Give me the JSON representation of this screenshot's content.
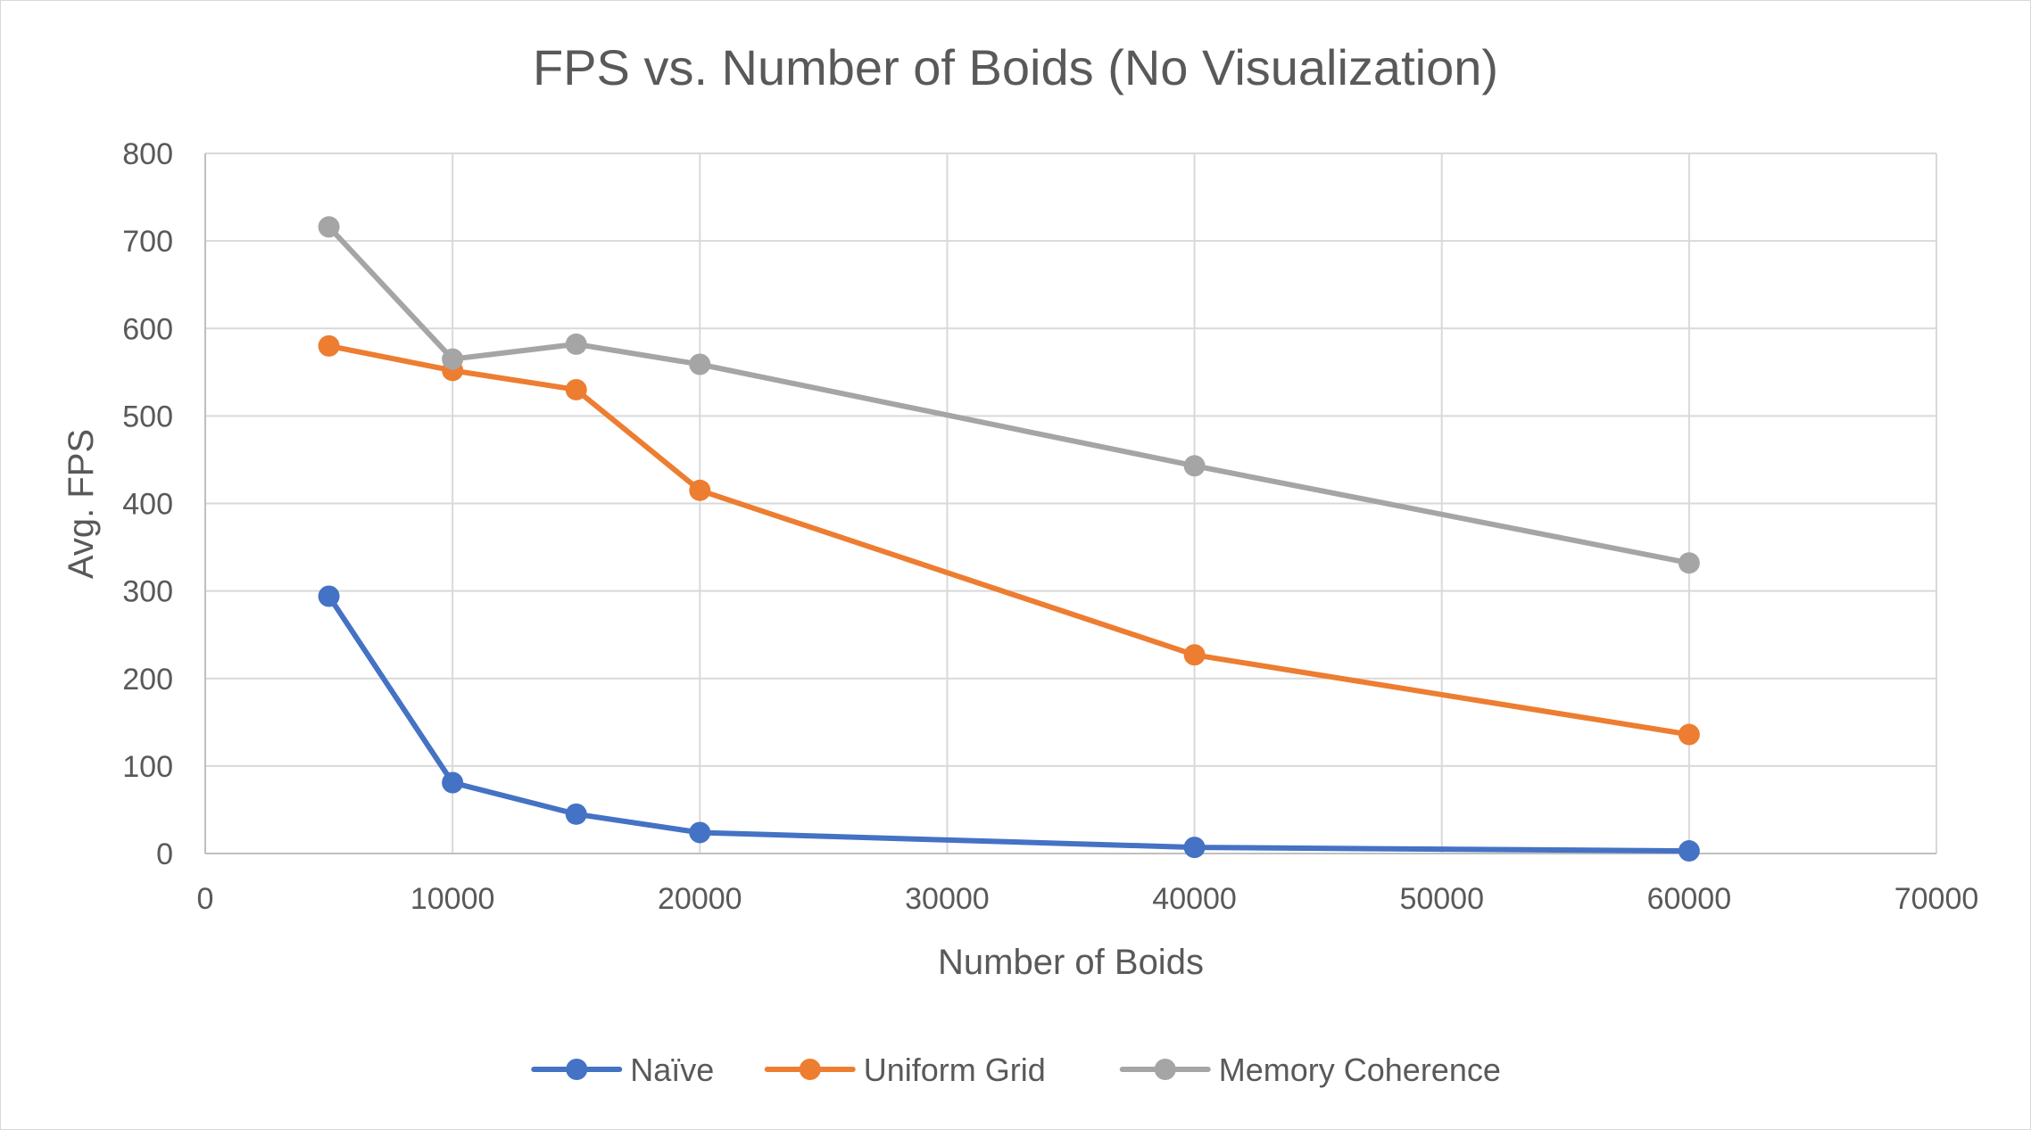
{
  "chart_data": {
    "type": "scatter",
    "mode": "lines+markers",
    "title": "FPS vs. Number of Boids (No Visualization)",
    "xlabel": "Number of Boids",
    "ylabel": "Avg. FPS",
    "xlim": [
      0,
      70000
    ],
    "ylim": [
      0,
      800
    ],
    "x_ticks": [
      0,
      10000,
      20000,
      30000,
      40000,
      50000,
      60000,
      70000
    ],
    "y_ticks": [
      0,
      100,
      200,
      300,
      400,
      500,
      600,
      700,
      800
    ],
    "grid": true,
    "legend_position": "bottom",
    "series": [
      {
        "name": "Naïve",
        "color": "#4472c4",
        "x": [
          5000,
          10000,
          15000,
          20000,
          40000,
          60000
        ],
        "y": [
          294,
          81,
          45,
          24,
          7,
          3
        ]
      },
      {
        "name": "Uniform Grid",
        "color": "#ed7d31",
        "x": [
          5000,
          10000,
          15000,
          20000,
          40000,
          60000
        ],
        "y": [
          580,
          552,
          530,
          415,
          227,
          136
        ]
      },
      {
        "name": "Memory Coherence",
        "color": "#a5a5a5",
        "x": [
          5000,
          10000,
          15000,
          20000,
          40000,
          60000
        ],
        "y": [
          716,
          565,
          582,
          559,
          443,
          332
        ]
      }
    ]
  }
}
